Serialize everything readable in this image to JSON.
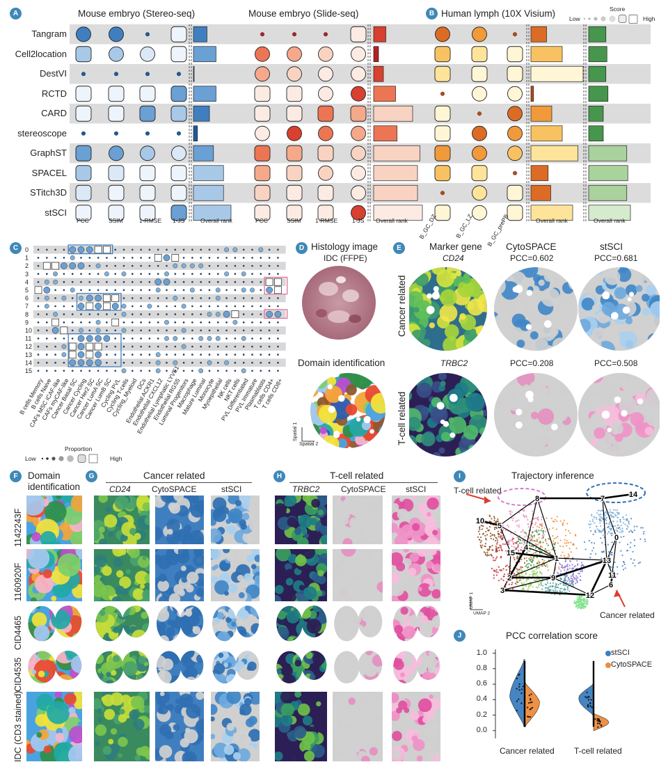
{
  "panels": {
    "A": "A",
    "B": "B",
    "C": "C",
    "D": "D",
    "E": "E",
    "F": "F",
    "G": "G",
    "H": "H",
    "I": "I",
    "J": "J"
  },
  "panel_a": {
    "title_stereo": "Mouse embryo (Stereo-seq)",
    "title_slide": "Mouse embryo (Slide-seq)",
    "methods": [
      "Tangram",
      "Cell2location",
      "DestVI",
      "RCTD",
      "CARD",
      "stereoscope",
      "GraphST",
      "SPACEL",
      "STitch3D",
      "stSCI"
    ],
    "metrics": [
      "PCC",
      "SSIM",
      "1-RMSE",
      "1-JS"
    ],
    "overall_rank": "Overall rank"
  },
  "panel_b": {
    "title": "Human lymph (10X Visium)",
    "columns": [
      "B_GC_DZ",
      "B_GC_LZ",
      "B_GC_prePB"
    ],
    "overall_rank": "Overall rank",
    "legend_score": "Score",
    "legend_low": "Low",
    "legend_high": "High"
  },
  "panel_c": {
    "rows": [
      "0",
      "1",
      "2",
      "3",
      "4",
      "5",
      "6",
      "7",
      "8",
      "9",
      "10",
      "11",
      "12",
      "13",
      "14",
      "15"
    ],
    "cell_types": [
      "B cells Memory",
      "B cells Naive",
      "CAFs MSC iCAF-like",
      "CAFs myCAF-like",
      "Cancer Basal SC",
      "Cancer Cycling",
      "Cancer Her2 SC",
      "Cancer LumA SC",
      "Cancer LumB SC",
      "Cycling PVL",
      "Cycling T-cells",
      "Cycling_Myeloid",
      "DCs",
      "Endothelial ACKR1",
      "Endothelial CXCL12",
      "Endothelial Lymphatic LYVE1",
      "Endothelial RGS5",
      "Luminal Progenitors",
      "Macrophage",
      "Mature Luminal",
      "Monocyte",
      "Myoepithelial",
      "NK cells",
      "NKT cells",
      "PVL Differentiated",
      "PVL Immature",
      "Plasmablasts",
      "T cells CD4+",
      "T cells CD8+"
    ],
    "legend_title": "Proportion",
    "legend_low": "Low",
    "legend_high": "High"
  },
  "panel_d": {
    "title": "Histology image",
    "subtitle": "IDC (FFPE)",
    "title2": "Domain identification",
    "axis1": "Spatial 1",
    "axis2": "Spatial 2"
  },
  "panel_e": {
    "col_titles": [
      "Marker gene",
      "CytoSPACE",
      "stSCI"
    ],
    "row1_labels": [
      "CD24",
      "PCC=0.602",
      "PCC=0.681"
    ],
    "row2_labels": [
      "TRBC2",
      "PCC=0.208",
      "PCC=0.508"
    ],
    "row_titles": [
      "Cancer related",
      "T-cell related"
    ]
  },
  "panel_f": {
    "title_line1": "Domain",
    "title_line2": "identification",
    "samples": [
      "1142243F",
      "1160920F",
      "CID4465",
      "CID4535",
      "IDC (CD3 stained)"
    ]
  },
  "panel_g": {
    "title": "Cancer related",
    "cols": [
      "CD24",
      "CytoSPACE",
      "stSCI"
    ]
  },
  "panel_h": {
    "title": "T-cell related",
    "cols": [
      "TRBC2",
      "CytoSPACE",
      "stSCI"
    ]
  },
  "panel_i": {
    "title": "Trajectory inference",
    "tcell_label": "T-cell related",
    "cancer_label": "Cancer related",
    "umap1": "UMAP 1",
    "umap2": "UMAP 2",
    "nodes": [
      "10",
      "5",
      "8",
      "4",
      "15",
      "1",
      "2",
      "9",
      "3",
      "13",
      "11",
      "7",
      "14",
      "0",
      "6",
      "12"
    ]
  },
  "panel_j": {
    "title": "PCC correlation score",
    "legend": [
      "stSCI",
      "CytoSPACE"
    ],
    "categories": [
      "Cancer related",
      "T-cell related"
    ],
    "yticks": [
      "1.0",
      "0.8",
      "0.6",
      "0.4",
      "0.2",
      "0.0"
    ]
  },
  "chart_data": {
    "type": "violin",
    "title": "PCC correlation score",
    "categories": [
      "Cancer related",
      "T-cell related"
    ],
    "ylim": [
      -0.1,
      1.05
    ],
    "series": [
      {
        "name": "stSCI",
        "color": "#3d7fc0",
        "median": [
          0.43,
          0.45
        ],
        "range": [
          [
            0.05,
            0.92
          ],
          [
            0.2,
            0.6
          ]
        ]
      },
      {
        "name": "CytoSPACE",
        "color": "#ef8c3c",
        "median": [
          0.38,
          0.1
        ],
        "range": [
          [
            0.05,
            0.62
          ],
          [
            0.0,
            0.22
          ]
        ]
      }
    ],
    "legend_position": "top-right"
  },
  "colors": {
    "blue_dark": "#1f5a9e",
    "blue_mid": "#5b9bd0",
    "blue_light": "#cfe0f1",
    "red_dark": "#c0262b",
    "red_light": "#f8ddd0",
    "orange_dark": "#d5621f",
    "orange_light": "#fdf1c8",
    "green_dark": "#3a8a45",
    "green_light": "#e6f3e0",
    "stsci": "#3d7fc0",
    "cytospace": "#ef8c3c"
  }
}
